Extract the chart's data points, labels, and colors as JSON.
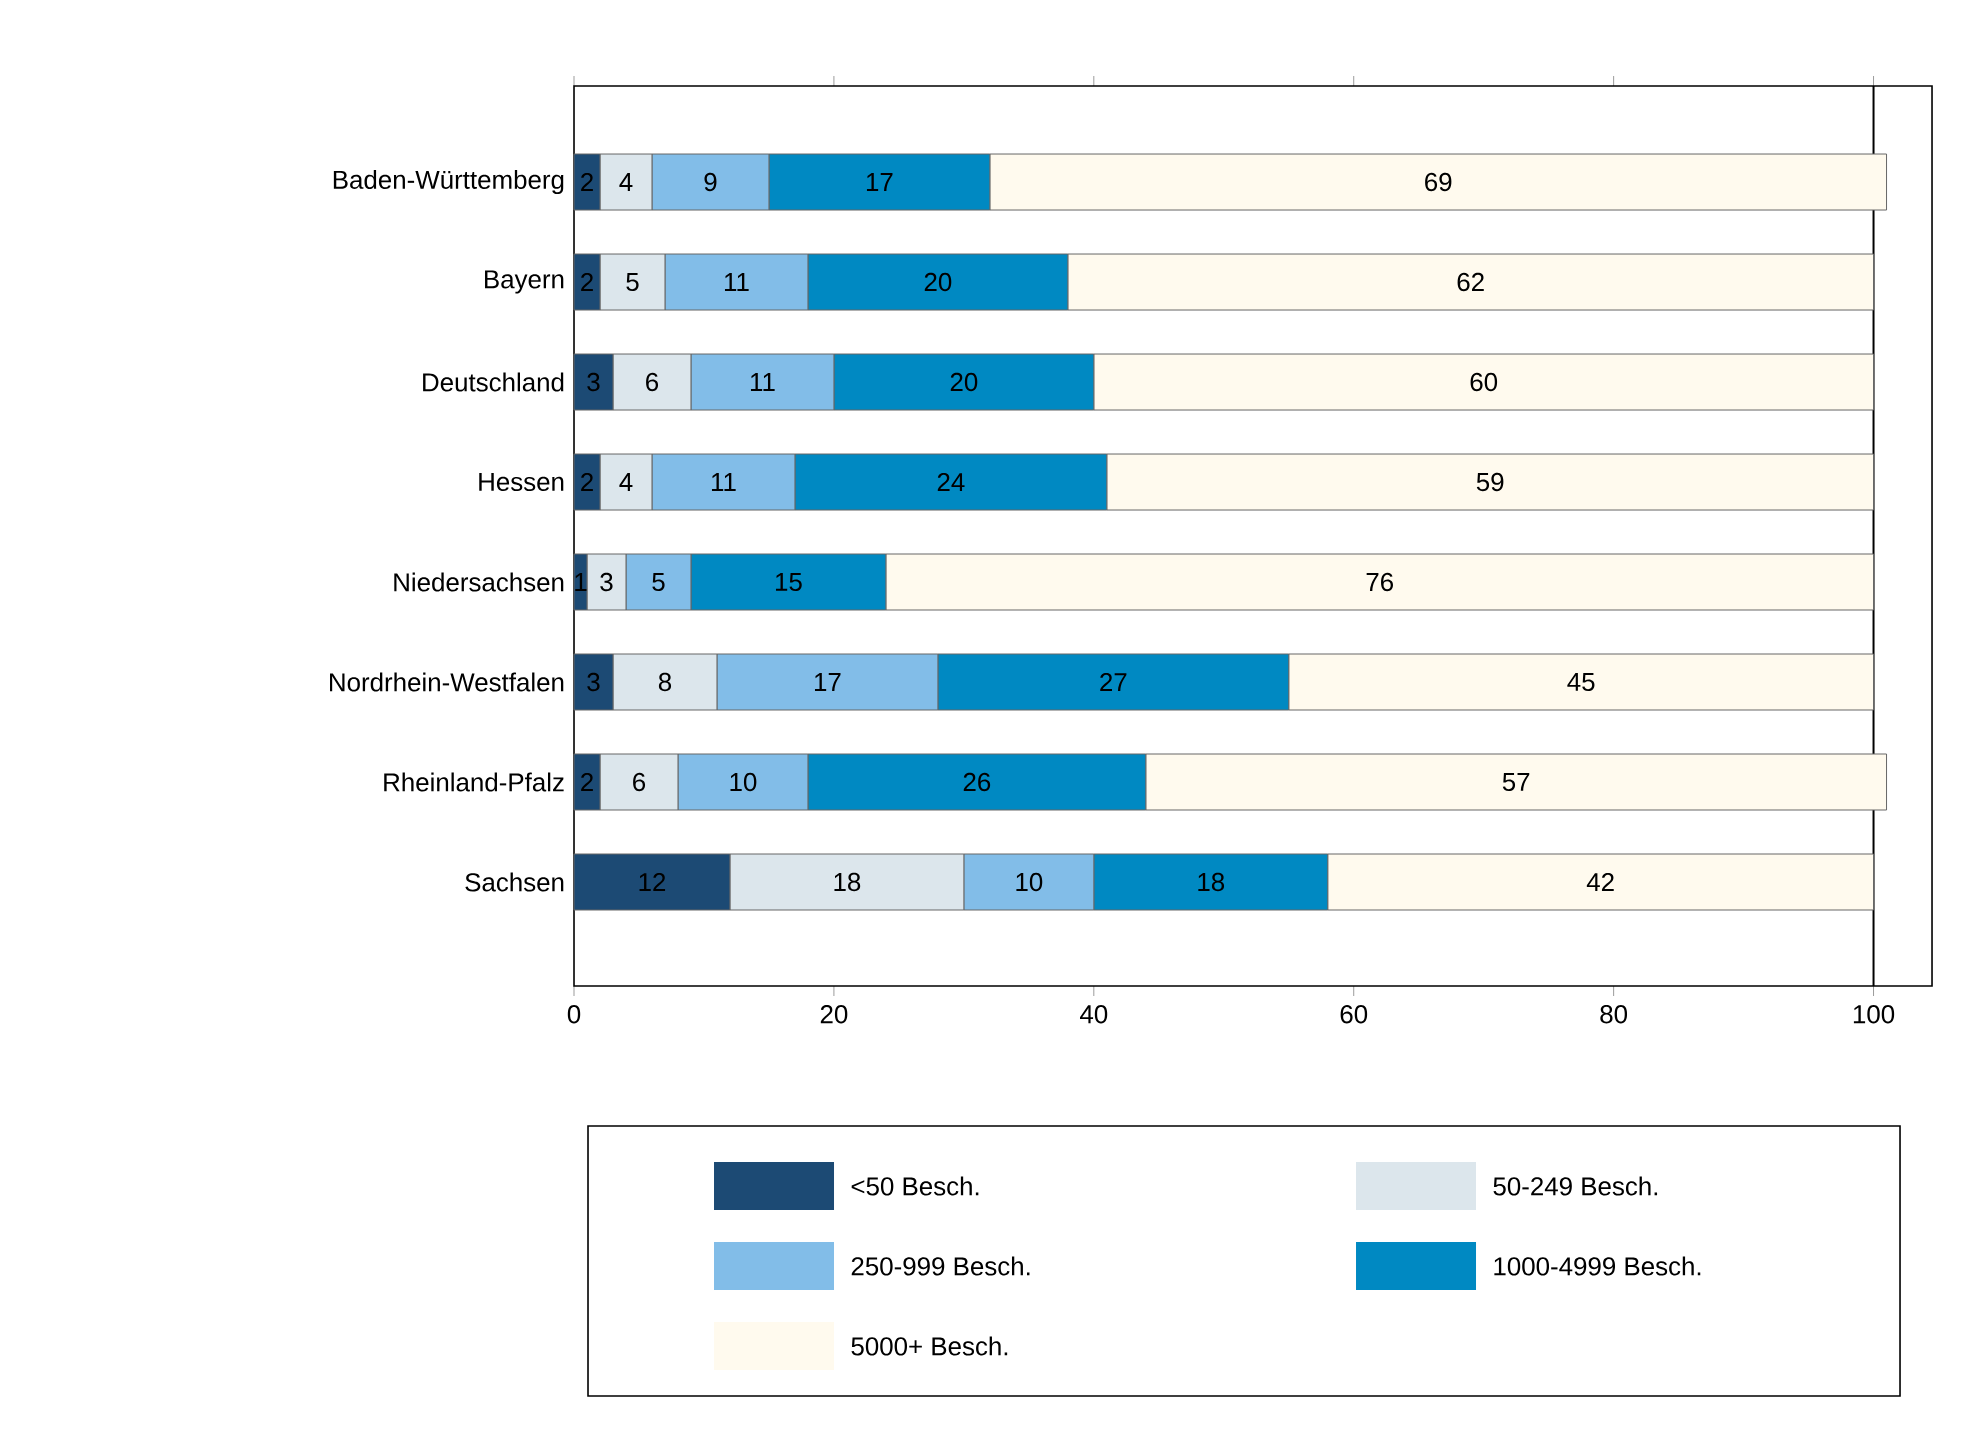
{
  "chart_data": {
    "type": "bar",
    "orientation": "horizontal",
    "stacked": true,
    "data_labels": true,
    "categories": [
      "Baden-Württemberg",
      "Bayern",
      "Deutschland",
      "Hessen",
      "Niedersachsen",
      "Nordrhein-Westfalen",
      "Rheinland-Pfalz",
      "Sachsen"
    ],
    "series": [
      {
        "name": "<50 Besch.",
        "color": "#1c4a74",
        "values": [
          2,
          2,
          3,
          2,
          1,
          3,
          2,
          12
        ]
      },
      {
        "name": "50-249 Besch.",
        "color": "#dce6ec",
        "values": [
          4,
          5,
          6,
          4,
          3,
          8,
          6,
          18
        ]
      },
      {
        "name": "250-999 Besch.",
        "color": "#82bde8",
        "values": [
          9,
          11,
          11,
          11,
          5,
          17,
          10,
          10
        ]
      },
      {
        "name": "1000-4999 Besch.",
        "color": "#0089c2",
        "values": [
          17,
          20,
          20,
          24,
          15,
          27,
          26,
          18
        ]
      },
      {
        "name": "5000+ Besch.",
        "color": "#fffaee",
        "values": [
          69,
          62,
          60,
          59,
          76,
          45,
          57,
          42
        ]
      }
    ],
    "xlim": [
      0,
      104.5
    ],
    "xticks": [
      0,
      20,
      40,
      60,
      80,
      100
    ],
    "ref_lines": [
      {
        "axis": "x",
        "value": 100,
        "color": "#000000"
      }
    ],
    "legend": "bottom",
    "grid": false
  }
}
